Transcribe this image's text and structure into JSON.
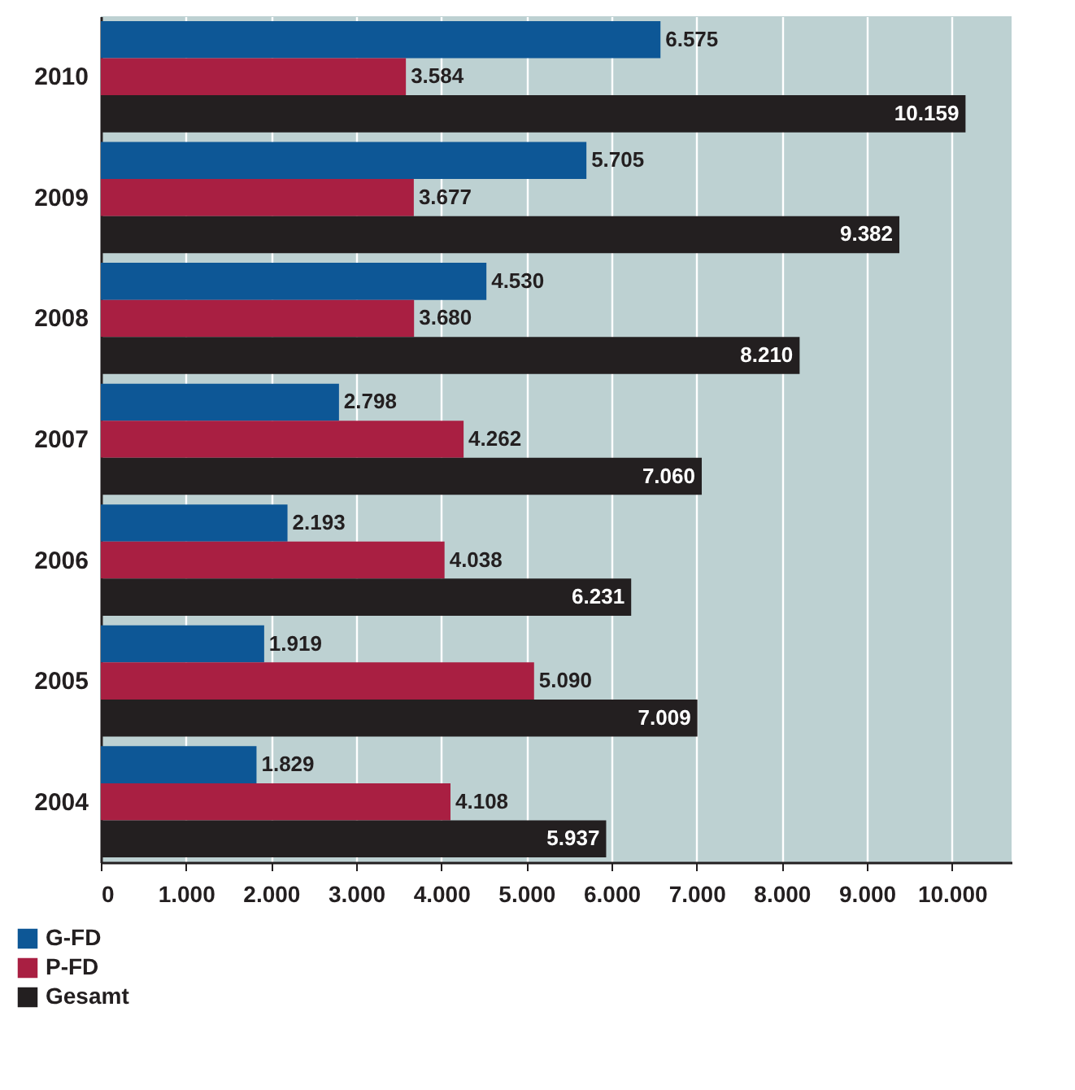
{
  "chart_data": {
    "type": "bar",
    "orientation": "horizontal",
    "categories": [
      "2010",
      "2009",
      "2008",
      "2007",
      "2006",
      "2005",
      "2004"
    ],
    "series": [
      {
        "name": "G-FD",
        "color": "#0d5796",
        "values": [
          6575,
          5705,
          4530,
          2798,
          2193,
          1919,
          1829
        ],
        "value_labels": [
          "6.575",
          "5.705",
          "4.530",
          "2.798",
          "2.193",
          "1.919",
          "1.829"
        ]
      },
      {
        "name": "P-FD",
        "color": "#a91f42",
        "values": [
          3584,
          3677,
          3680,
          4262,
          4038,
          5090,
          4108
        ],
        "value_labels": [
          "3.584",
          "3.677",
          "3.680",
          "4.262",
          "4.038",
          "5.090",
          "4.108"
        ]
      },
      {
        "name": "Gesamt",
        "color": "#231f20",
        "values": [
          10159,
          9382,
          8210,
          7060,
          6231,
          7009,
          5937
        ],
        "value_labels": [
          "10.159",
          "9.382",
          "8.210",
          "7.060",
          "6.231",
          "7.009",
          "5.937"
        ]
      }
    ],
    "xlim": [
      0,
      10700
    ],
    "xticks": [
      0,
      {
        "value": 1000,
        "label": "1.000"
      },
      {
        "value": 2000,
        "label": "2.000"
      },
      {
        "value": 3000,
        "label": "3.000"
      },
      {
        "value": 4000,
        "label": "4.000"
      },
      {
        "value": 5000,
        "label": "5.000"
      },
      {
        "value": 6000,
        "label": "6.000"
      },
      {
        "value": 7000,
        "label": "7.000"
      },
      {
        "value": 8000,
        "label": "8.000"
      },
      {
        "value": 9000,
        "label": "9.000"
      },
      {
        "value": 10000,
        "label": "10.000"
      }
    ],
    "grid": "x",
    "legend": "bottom left"
  }
}
